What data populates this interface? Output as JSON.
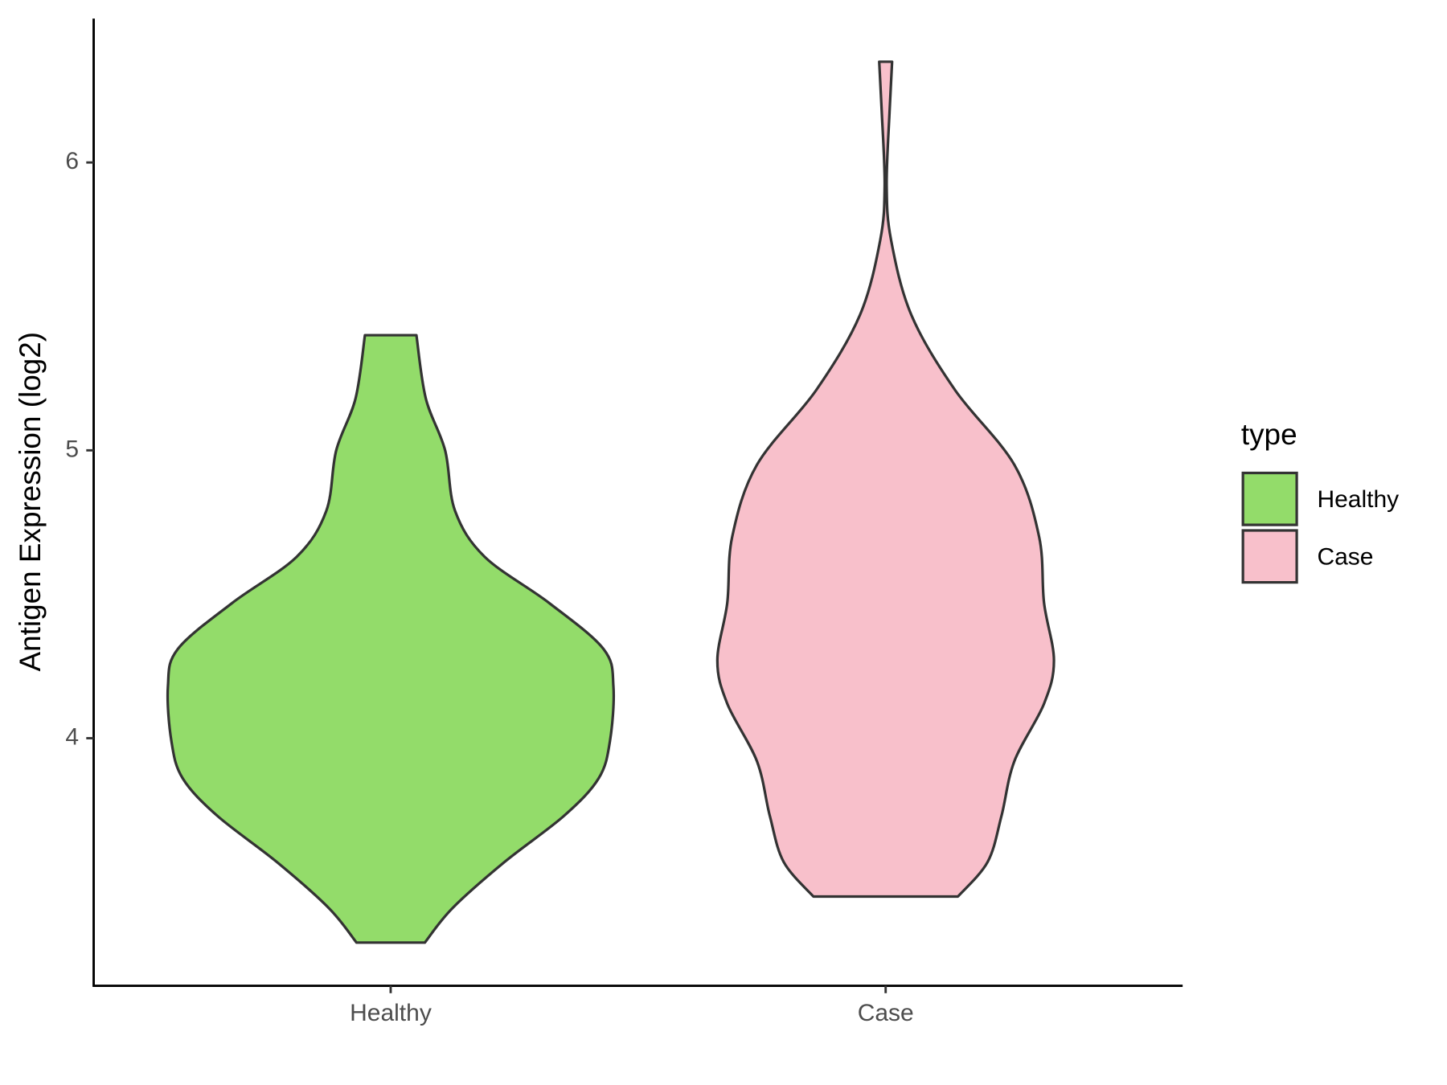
{
  "chart_data": {
    "type": "violin",
    "ylabel": "Antigen Expression (log2)",
    "legend_title": "type",
    "categories": [
      "Healthy",
      "Case"
    ],
    "ylim": [
      3.14,
      6.5
    ],
    "yticks": [
      4,
      5,
      6
    ],
    "series": [
      {
        "name": "Healthy",
        "color": "#93dc6a",
        "y": [
          3.29,
          3.41,
          3.57,
          3.73,
          3.86,
          3.99,
          4.18,
          4.31,
          4.47,
          4.63,
          4.79,
          5.0,
          5.18,
          5.4
        ],
        "density": [
          0.069,
          0.125,
          0.23,
          0.35,
          0.42,
          0.443,
          0.45,
          0.43,
          0.32,
          0.19,
          0.13,
          0.11,
          0.071,
          0.052
        ]
      },
      {
        "name": "Case",
        "color": "#f8c0cb",
        "y": [
          3.45,
          3.57,
          3.73,
          3.92,
          4.12,
          4.27,
          4.47,
          4.7,
          4.95,
          5.21,
          5.47,
          5.73,
          5.92,
          6.18,
          6.35
        ],
        "density": [
          0.146,
          0.206,
          0.234,
          0.26,
          0.32,
          0.34,
          0.32,
          0.31,
          0.26,
          0.14,
          0.052,
          0.011,
          0.002,
          0.008,
          0.013
        ]
      }
    ]
  }
}
